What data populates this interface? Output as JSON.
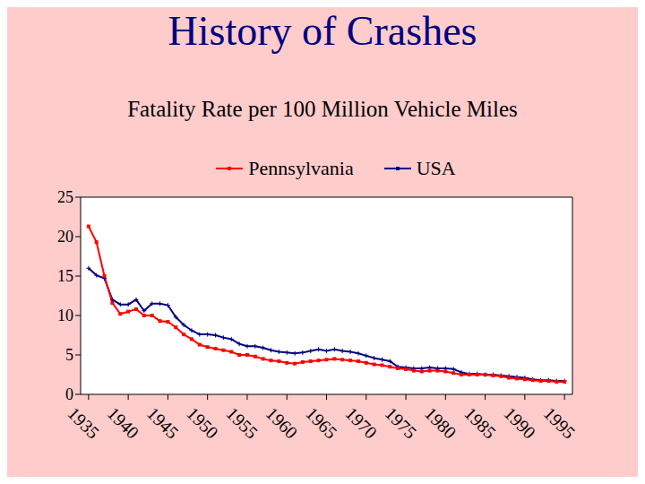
{
  "chart_data": {
    "type": "line",
    "title": "History of Crashes",
    "subtitle": "Fatality Rate per 100 Million Vehicle Miles",
    "x": [
      1935,
      1936,
      1937,
      1938,
      1939,
      1940,
      1941,
      1942,
      1943,
      1944,
      1945,
      1946,
      1947,
      1948,
      1949,
      1950,
      1951,
      1952,
      1953,
      1954,
      1955,
      1956,
      1957,
      1958,
      1959,
      1960,
      1961,
      1962,
      1963,
      1964,
      1965,
      1966,
      1967,
      1968,
      1969,
      1970,
      1971,
      1972,
      1973,
      1974,
      1975,
      1976,
      1977,
      1978,
      1979,
      1980,
      1981,
      1982,
      1983,
      1984,
      1985,
      1986,
      1987,
      1988,
      1989,
      1990,
      1991,
      1992,
      1993,
      1994,
      1995
    ],
    "series": [
      {
        "name": "USA",
        "color": "#000080",
        "marker": "plus",
        "values": [
          16,
          15.1,
          14.7,
          12,
          11.4,
          11.4,
          12,
          10.6,
          11.5,
          11.5,
          11.3,
          9.8,
          8.8,
          8.1,
          7.6,
          7.6,
          7.5,
          7.2,
          7,
          6.4,
          6.1,
          6.1,
          5.9,
          5.6,
          5.4,
          5.3,
          5.2,
          5.3,
          5.5,
          5.7,
          5.5,
          5.7,
          5.5,
          5.4,
          5.2,
          4.9,
          4.6,
          4.4,
          4.2,
          3.5,
          3.4,
          3.3,
          3.3,
          3.4,
          3.3,
          3.3,
          3.2,
          2.8,
          2.6,
          2.6,
          2.5,
          2.5,
          2.4,
          2.3,
          2.2,
          2.1,
          1.9,
          1.8,
          1.8,
          1.7,
          1.7
        ]
      },
      {
        "name": "Pennsylvania",
        "color": "#ff0000",
        "marker": "square",
        "values": [
          21.3,
          19.3,
          15,
          11.6,
          10.2,
          10.5,
          10.8,
          10,
          10,
          9.3,
          9.2,
          8.5,
          7.6,
          7,
          6.3,
          6,
          5.8,
          5.6,
          5.4,
          5,
          5,
          4.8,
          4.5,
          4.3,
          4.2,
          4,
          3.9,
          4.1,
          4.2,
          4.3,
          4.4,
          4.5,
          4.4,
          4.3,
          4.2,
          4,
          3.8,
          3.7,
          3.5,
          3.3,
          3.2,
          3,
          2.9,
          3,
          3,
          2.9,
          2.7,
          2.5,
          2.5,
          2.5,
          2.5,
          2.4,
          2.3,
          2.1,
          2,
          1.9,
          1.8,
          1.7,
          1.7,
          1.6,
          1.6
        ]
      }
    ],
    "xlim": [
      1934,
      1996
    ],
    "xticks": [
      1935,
      1940,
      1945,
      1950,
      1955,
      1960,
      1965,
      1970,
      1975,
      1980,
      1985,
      1990,
      1995
    ],
    "ylim": [
      0,
      25
    ],
    "yticks": [
      0,
      5,
      10,
      15,
      20,
      25
    ],
    "grid": false,
    "legend": "top"
  }
}
